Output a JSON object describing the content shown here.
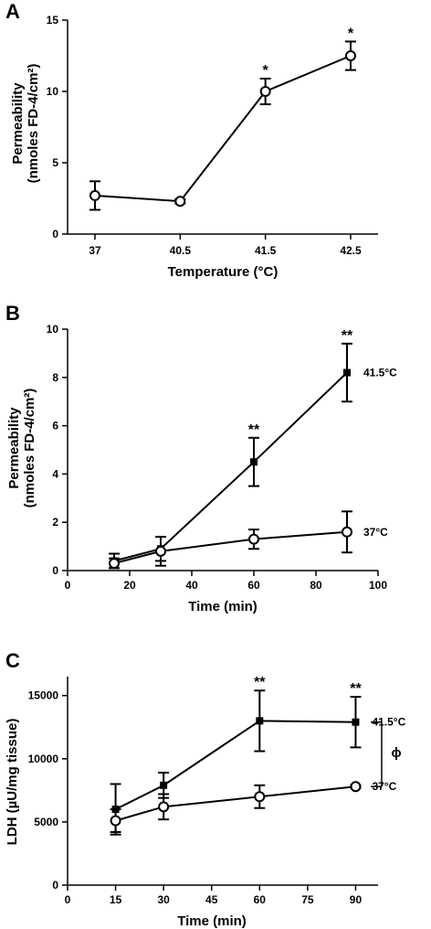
{
  "chart_data": [
    {
      "panel": "A",
      "type": "line",
      "xlabel": "Temperature (°C)",
      "ylabel_line1": "Permeability",
      "ylabel_line2": "(nmoles FD-4/cm²)",
      "categories": [
        "37",
        "40.5",
        "41.5",
        "42.5"
      ],
      "ylim": [
        0,
        15
      ],
      "yticks": [
        0,
        5,
        10,
        15
      ],
      "series": [
        {
          "marker": "circle",
          "values": [
            2.7,
            2.3,
            10.0,
            12.5
          ],
          "errors": [
            1.0,
            0.15,
            0.9,
            1.0
          ],
          "annotations": [
            "",
            "",
            "*",
            "*"
          ]
        }
      ]
    },
    {
      "panel": "B",
      "type": "line",
      "xlabel": "Time (min)",
      "ylabel_line1": "Permeability",
      "ylabel_line2": "(nmoles FD-4/cm²)",
      "xlim": [
        0,
        100
      ],
      "xticks": [
        0,
        20,
        40,
        60,
        80,
        100
      ],
      "ylim": [
        0,
        10
      ],
      "yticks": [
        0,
        2,
        4,
        6,
        8,
        10
      ],
      "series": [
        {
          "name": "41.5°C",
          "marker": "square",
          "x": [
            15,
            30,
            60,
            90
          ],
          "values": [
            0.4,
            0.9,
            4.5,
            8.2
          ],
          "errors": [
            0.3,
            0.5,
            1.0,
            1.2
          ],
          "annotations": [
            "",
            "",
            "**",
            "**"
          ]
        },
        {
          "name": "37°C",
          "marker": "circle",
          "x": [
            15,
            30,
            60,
            90
          ],
          "values": [
            0.3,
            0.8,
            1.3,
            1.6
          ],
          "errors": [
            0.2,
            0.6,
            0.4,
            0.85
          ],
          "annotations": [
            "",
            "",
            "",
            ""
          ]
        }
      ]
    },
    {
      "panel": "C",
      "type": "line",
      "xlabel": "Time (min)",
      "ylabel": "LDH (µU/mg tissue)",
      "xlim": [
        0,
        97
      ],
      "xticks": [
        0,
        15,
        30,
        45,
        60,
        75,
        90
      ],
      "ylim": [
        0,
        16500
      ],
      "yticks": [
        0,
        5000,
        10000,
        15000
      ],
      "bracket_symbol": "ϕ",
      "series": [
        {
          "name": "41.5°C",
          "marker": "square",
          "x": [
            15,
            30,
            60,
            90
          ],
          "values": [
            6000,
            7900,
            13000,
            12900
          ],
          "errors": [
            2000,
            1000,
            2400,
            2000
          ],
          "annotations": [
            "",
            "",
            "**",
            "**"
          ]
        },
        {
          "name": "37°C",
          "marker": "circle",
          "x": [
            15,
            30,
            60,
            90
          ],
          "values": [
            5100,
            6200,
            7000,
            7800
          ],
          "errors": [
            900,
            1000,
            900,
            100
          ],
          "annotations": [
            "",
            "",
            "",
            ""
          ]
        }
      ]
    }
  ]
}
